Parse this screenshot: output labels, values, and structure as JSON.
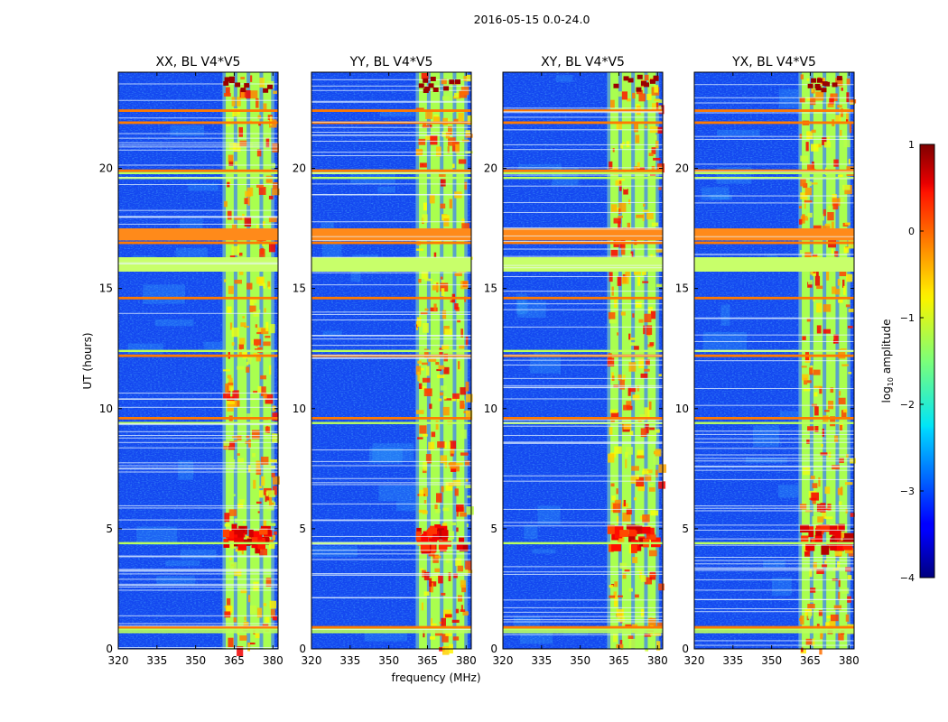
{
  "figure": {
    "suptitle": "2016-05-15 0.0-24.0"
  },
  "chart_data": {
    "type": "heatmap",
    "title": "2016-05-15 0.0-24.0",
    "xlabel": "frequency (MHz)",
    "ylabel": "UT (hours)",
    "xlim": [
      320,
      382
    ],
    "ylim": [
      0,
      24
    ],
    "x_ticks": [
      "320",
      "335",
      "350",
      "365",
      "380"
    ],
    "x_tick_values": [
      320,
      335,
      350,
      365,
      380
    ],
    "y_ticks": [
      "0",
      "5",
      "10",
      "15",
      "20"
    ],
    "y_tick_values": [
      0,
      5,
      10,
      15,
      20
    ],
    "panels": [
      {
        "title": "XX, BL V4*V5",
        "polarization": "XX"
      },
      {
        "title": "YY, BL V4*V5",
        "polarization": "YY"
      },
      {
        "title": "XY, BL V4*V5",
        "polarization": "XY"
      },
      {
        "title": "YX, BL V4*V5",
        "polarization": "YX"
      }
    ],
    "strong_band_mhz": [
      360.5,
      380.5
    ],
    "band_channels_mhz": [
      361,
      365.5,
      370.5,
      375.5,
      380
    ],
    "rfi_hours_orange": [
      0.9,
      9.6,
      12.2,
      14.6,
      16.9,
      17.4,
      19.9,
      21.9,
      22.4
    ],
    "rfi_hours_bright": [
      0.7,
      0.8,
      4.4,
      9.4,
      12.4,
      15.8,
      16.0,
      16.2,
      19.6,
      19.8
    ],
    "colorbar": {
      "label_main": "log",
      "label_sub": "10",
      "label_suffix": " amplitude",
      "range": [
        -4,
        1
      ],
      "ticks": [
        "1",
        "0",
        "−1",
        "−2",
        "−3",
        "−4"
      ],
      "tick_values": [
        1,
        0,
        -1,
        -2,
        -3,
        -4
      ],
      "colormap": "jet"
    }
  }
}
